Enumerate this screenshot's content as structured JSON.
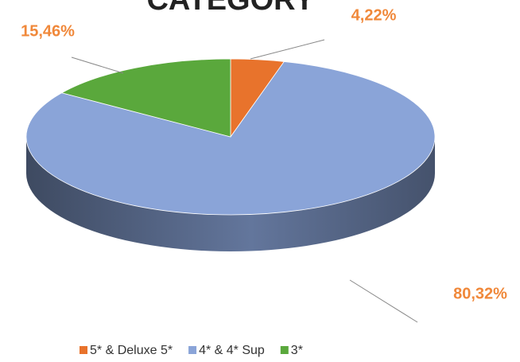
{
  "chart_data": {
    "type": "pie3d",
    "title": "CATEGORY",
    "categories": [
      "5* & Deluxe 5*",
      "4* & 4* Sup",
      "3*"
    ],
    "values": [
      4.22,
      80.32,
      15.46
    ],
    "value_labels": [
      "4,22%",
      "80,32%",
      "15,46%"
    ],
    "colors": [
      "#e8732c",
      "#8aa4d8",
      "#5aa83c"
    ],
    "legend": "bottom"
  }
}
